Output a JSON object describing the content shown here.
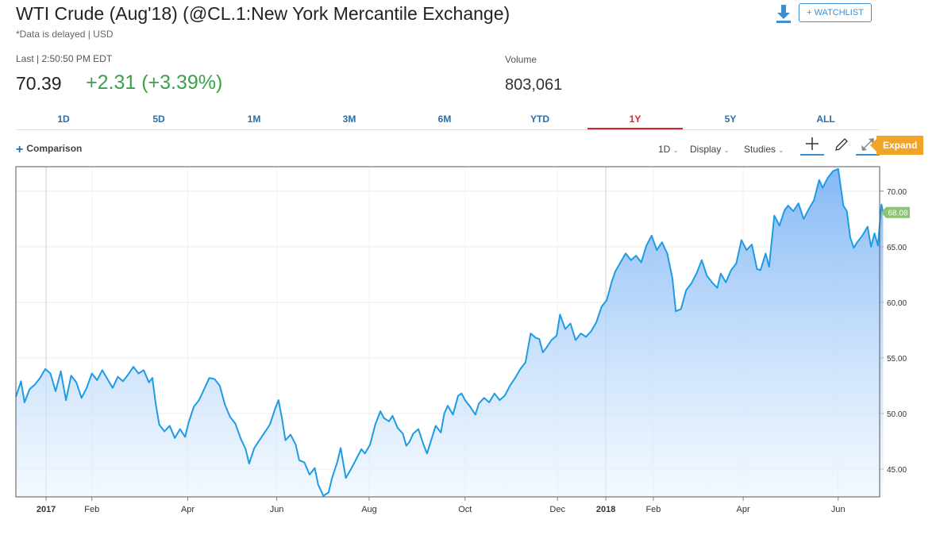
{
  "header": {
    "title": "WTI Crude (Aug'18) (@CL.1:New York Mercantile Exchange)",
    "subtitle": "*Data is delayed | USD",
    "last_label": "Last | 2:50:50 PM EDT",
    "last_price": "70.39",
    "change": "+2.31 (+3.39%)",
    "volume_label": "Volume",
    "volume_value": "803,061",
    "watchlist_label": "+ WATCHLIST",
    "download_icon": "download-icon"
  },
  "tabs": [
    {
      "label": "1D",
      "active": false
    },
    {
      "label": "5D",
      "active": false
    },
    {
      "label": "1M",
      "active": false
    },
    {
      "label": "3M",
      "active": false
    },
    {
      "label": "6M",
      "active": false
    },
    {
      "label": "YTD",
      "active": false
    },
    {
      "label": "1Y",
      "active": true
    },
    {
      "label": "5Y",
      "active": false
    },
    {
      "label": "ALL",
      "active": false
    }
  ],
  "toolbar": {
    "comparison_label": "Comparison",
    "interval_label": "1D",
    "display_label": "Display",
    "studies_label": "Studies",
    "expand_label": "Expand"
  },
  "colors": {
    "accent": "#2a6da8",
    "positive": "#3aa14a",
    "active_tab": "#d2262c",
    "line": "#1e9be4",
    "expand": "#f0a428",
    "last_badge": "#8cc474"
  },
  "chart_data": {
    "type": "area",
    "ylim": [
      42.5,
      72.2
    ],
    "yticks": [
      "45.00",
      "50.00",
      "55.00",
      "60.00",
      "65.00",
      "70.00"
    ],
    "last_value_label": "68.08",
    "xticks": [
      {
        "label": "2017",
        "pos": 0.035,
        "bold": true,
        "grid": true
      },
      {
        "label": "Feb",
        "pos": 0.088
      },
      {
        "label": "Apr",
        "pos": 0.199
      },
      {
        "label": "Jun",
        "pos": 0.302
      },
      {
        "label": "Aug",
        "pos": 0.409
      },
      {
        "label": "Oct",
        "pos": 0.52
      },
      {
        "label": "Dec",
        "pos": 0.627
      },
      {
        "label": "2018",
        "pos": 0.683,
        "bold": true,
        "grid": true
      },
      {
        "label": "Feb",
        "pos": 0.738
      },
      {
        "label": "Apr",
        "pos": 0.842
      },
      {
        "label": "Jun",
        "pos": 0.952
      }
    ],
    "series": [
      {
        "points": [
          [
            0.0,
            51.5
          ],
          [
            0.006,
            52.9
          ],
          [
            0.01,
            51.0
          ],
          [
            0.016,
            52.2
          ],
          [
            0.022,
            52.6
          ],
          [
            0.028,
            53.2
          ],
          [
            0.034,
            54.0
          ],
          [
            0.04,
            53.6
          ],
          [
            0.046,
            52.0
          ],
          [
            0.052,
            53.8
          ],
          [
            0.058,
            51.2
          ],
          [
            0.064,
            53.4
          ],
          [
            0.07,
            52.8
          ],
          [
            0.076,
            51.4
          ],
          [
            0.082,
            52.3
          ],
          [
            0.088,
            53.6
          ],
          [
            0.094,
            53.0
          ],
          [
            0.1,
            53.9
          ],
          [
            0.106,
            53.1
          ],
          [
            0.112,
            52.3
          ],
          [
            0.118,
            53.3
          ],
          [
            0.124,
            52.9
          ],
          [
            0.13,
            53.5
          ],
          [
            0.136,
            54.2
          ],
          [
            0.142,
            53.6
          ],
          [
            0.148,
            53.9
          ],
          [
            0.154,
            52.8
          ],
          [
            0.158,
            53.2
          ],
          [
            0.162,
            50.8
          ],
          [
            0.166,
            49.0
          ],
          [
            0.172,
            48.4
          ],
          [
            0.178,
            48.9
          ],
          [
            0.184,
            47.8
          ],
          [
            0.19,
            48.6
          ],
          [
            0.196,
            47.9
          ],
          [
            0.2,
            49.2
          ],
          [
            0.206,
            50.6
          ],
          [
            0.212,
            51.2
          ],
          [
            0.218,
            52.2
          ],
          [
            0.224,
            53.2
          ],
          [
            0.23,
            53.1
          ],
          [
            0.236,
            52.5
          ],
          [
            0.242,
            50.8
          ],
          [
            0.248,
            49.7
          ],
          [
            0.254,
            49.1
          ],
          [
            0.26,
            47.8
          ],
          [
            0.266,
            46.8
          ],
          [
            0.27,
            45.5
          ],
          [
            0.276,
            46.9
          ],
          [
            0.282,
            47.6
          ],
          [
            0.288,
            48.3
          ],
          [
            0.294,
            49.0
          ],
          [
            0.3,
            50.4
          ],
          [
            0.304,
            51.2
          ],
          [
            0.308,
            49.6
          ],
          [
            0.312,
            47.6
          ],
          [
            0.318,
            48.1
          ],
          [
            0.324,
            47.2
          ],
          [
            0.328,
            45.8
          ],
          [
            0.334,
            45.6
          ],
          [
            0.34,
            44.5
          ],
          [
            0.346,
            45.1
          ],
          [
            0.35,
            43.6
          ],
          [
            0.356,
            42.6
          ],
          [
            0.362,
            42.9
          ],
          [
            0.366,
            44.2
          ],
          [
            0.372,
            45.6
          ],
          [
            0.376,
            46.9
          ],
          [
            0.382,
            44.2
          ],
          [
            0.388,
            45.0
          ],
          [
            0.394,
            45.9
          ],
          [
            0.4,
            46.8
          ],
          [
            0.404,
            46.4
          ],
          [
            0.41,
            47.2
          ],
          [
            0.416,
            49.0
          ],
          [
            0.422,
            50.2
          ],
          [
            0.426,
            49.6
          ],
          [
            0.432,
            49.3
          ],
          [
            0.436,
            49.8
          ],
          [
            0.442,
            48.7
          ],
          [
            0.448,
            48.2
          ],
          [
            0.452,
            47.1
          ],
          [
            0.456,
            47.5
          ],
          [
            0.46,
            48.2
          ],
          [
            0.466,
            48.6
          ],
          [
            0.472,
            47.2
          ],
          [
            0.476,
            46.4
          ],
          [
            0.48,
            47.4
          ],
          [
            0.486,
            48.9
          ],
          [
            0.492,
            48.3
          ],
          [
            0.496,
            50.0
          ],
          [
            0.5,
            50.7
          ],
          [
            0.506,
            49.9
          ],
          [
            0.512,
            51.6
          ],
          [
            0.516,
            51.8
          ],
          [
            0.52,
            51.2
          ],
          [
            0.526,
            50.6
          ],
          [
            0.532,
            49.9
          ],
          [
            0.536,
            50.9
          ],
          [
            0.542,
            51.4
          ],
          [
            0.548,
            51.0
          ],
          [
            0.554,
            51.8
          ],
          [
            0.56,
            51.2
          ],
          [
            0.566,
            51.6
          ],
          [
            0.572,
            52.5
          ],
          [
            0.578,
            53.2
          ],
          [
            0.584,
            54.0
          ],
          [
            0.59,
            54.6
          ],
          [
            0.596,
            57.2
          ],
          [
            0.602,
            56.8
          ],
          [
            0.606,
            56.7
          ],
          [
            0.61,
            55.5
          ],
          [
            0.614,
            55.9
          ],
          [
            0.62,
            56.6
          ],
          [
            0.626,
            57.0
          ],
          [
            0.63,
            58.9
          ],
          [
            0.636,
            57.6
          ],
          [
            0.642,
            58.1
          ],
          [
            0.648,
            56.6
          ],
          [
            0.654,
            57.2
          ],
          [
            0.66,
            56.9
          ],
          [
            0.666,
            57.4
          ],
          [
            0.672,
            58.2
          ],
          [
            0.678,
            59.6
          ],
          [
            0.684,
            60.2
          ],
          [
            0.69,
            61.9
          ],
          [
            0.694,
            62.8
          ],
          [
            0.7,
            63.6
          ],
          [
            0.706,
            64.4
          ],
          [
            0.712,
            63.8
          ],
          [
            0.718,
            64.2
          ],
          [
            0.724,
            63.6
          ],
          [
            0.73,
            65.1
          ],
          [
            0.736,
            66.0
          ],
          [
            0.742,
            64.7
          ],
          [
            0.748,
            65.4
          ],
          [
            0.754,
            64.4
          ],
          [
            0.76,
            62.2
          ],
          [
            0.764,
            59.2
          ],
          [
            0.77,
            59.4
          ],
          [
            0.776,
            61.1
          ],
          [
            0.782,
            61.7
          ],
          [
            0.788,
            62.6
          ],
          [
            0.794,
            63.8
          ],
          [
            0.8,
            62.4
          ],
          [
            0.806,
            61.8
          ],
          [
            0.812,
            61.3
          ],
          [
            0.816,
            62.6
          ],
          [
            0.822,
            61.8
          ],
          [
            0.828,
            62.9
          ],
          [
            0.834,
            63.5
          ],
          [
            0.84,
            65.6
          ],
          [
            0.846,
            64.7
          ],
          [
            0.852,
            65.2
          ],
          [
            0.858,
            63.0
          ],
          [
            0.862,
            62.9
          ],
          [
            0.868,
            64.4
          ],
          [
            0.872,
            63.2
          ],
          [
            0.878,
            67.8
          ],
          [
            0.884,
            66.9
          ],
          [
            0.89,
            68.3
          ],
          [
            0.894,
            68.7
          ],
          [
            0.9,
            68.2
          ],
          [
            0.906,
            68.9
          ],
          [
            0.912,
            67.5
          ],
          [
            0.918,
            68.4
          ],
          [
            0.924,
            69.2
          ],
          [
            0.93,
            71.0
          ],
          [
            0.934,
            70.3
          ],
          [
            0.94,
            71.2
          ],
          [
            0.946,
            71.8
          ],
          [
            0.952,
            72.0
          ],
          [
            0.958,
            68.7
          ],
          [
            0.962,
            68.2
          ],
          [
            0.966,
            65.8
          ],
          [
            0.97,
            64.9
          ],
          [
            0.974,
            65.4
          ],
          [
            0.98,
            66.0
          ],
          [
            0.986,
            66.8
          ],
          [
            0.99,
            65.0
          ],
          [
            0.994,
            66.2
          ],
          [
            0.998,
            65.1
          ],
          [
            1.002,
            68.8
          ],
          [
            1.004,
            68.08
          ]
        ]
      }
    ]
  }
}
